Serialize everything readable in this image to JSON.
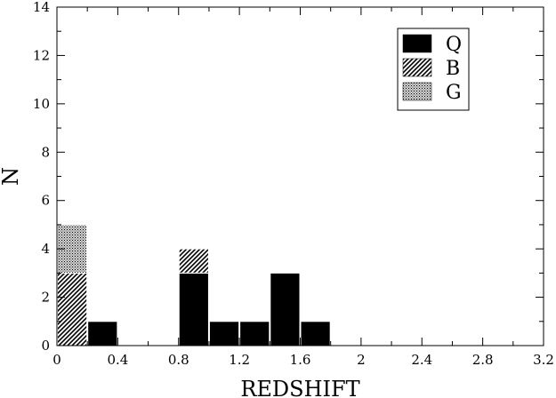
{
  "chart_data": {
    "type": "bar",
    "stacked": true,
    "xlabel": "REDSHIFT",
    "ylabel": "N",
    "xlim": [
      0,
      3.2
    ],
    "ylim": [
      0,
      14
    ],
    "bin_width": 0.2,
    "xticks": [
      "0",
      "0.4",
      "0.8",
      "1.2",
      "1.6",
      "2",
      "2.4",
      "2.8",
      "3.2"
    ],
    "yticks": [
      "0",
      "2",
      "4",
      "6",
      "8",
      "10",
      "12",
      "14"
    ],
    "x": [
      0.0,
      0.2,
      0.4,
      0.6,
      0.8,
      1.0,
      1.2,
      1.4,
      1.6
    ],
    "series": [
      {
        "name": "Q",
        "fill": "solid",
        "color": "#000000",
        "values": [
          0,
          1,
          0,
          0,
          3,
          1,
          1,
          3,
          1
        ]
      },
      {
        "name": "B",
        "fill": "hatched",
        "color": "#000000",
        "values": [
          3,
          0,
          0,
          0,
          1,
          0,
          0,
          0,
          0
        ]
      },
      {
        "name": "G",
        "fill": "dotted",
        "color": "#000000",
        "values": [
          2,
          0,
          0,
          0,
          0,
          0,
          0,
          0,
          0
        ]
      }
    ],
    "legend_position": "top-right",
    "grid": false
  }
}
